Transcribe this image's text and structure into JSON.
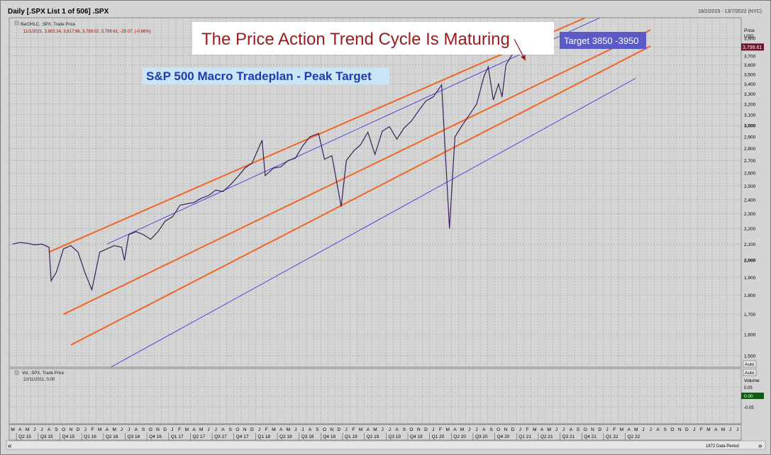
{
  "window": {
    "title": "Daily [.SPX List 1 of 506] .SPX",
    "date_range": "18/2/2015 - 13/7/2022 (NYC)"
  },
  "price_panel": {
    "legend_line1": "BarOHLC, .SPX, Trade Price",
    "legend_line2": "11/1/2021, 3,803.14, 3,817.86, 3,789.02, 3,799.61, -25.07, (-0.66%)",
    "axis_title_1": "Price",
    "axis_title_2": "USD",
    "last_price_label": "3,799.61",
    "auto_button": "Auto"
  },
  "volume_panel": {
    "legend_line1": "Vol, .SPX, Trade Price",
    "legend_line2": "22/11/2011, 0.00",
    "axis_title": "Volume",
    "ticks": [
      "0.05",
      "0.00",
      "-0.05"
    ],
    "value_label": "0.00",
    "auto_button": "Auto"
  },
  "bottom_bar": {
    "data_period": "1872 Data Period",
    "scroll_left": "«",
    "scroll_right": "»"
  },
  "annotations": {
    "headline": "The Price Action Trend Cycle Is Maturing",
    "subtitle": "S&P 500 Macro Tradeplan - Peak Target",
    "target_box": "Target 3850 -3950"
  },
  "colors": {
    "channel_orange": "#f26522",
    "channel_blue": "#3a3ae0",
    "price_series": "#3a1f5c",
    "subtitle_text": "#1f3bb3",
    "subtitle_bg": "#c8e6f5",
    "headline_text": "#9b1b1b",
    "target_bg": "#5b5bc8",
    "arrow": "#9b1b1b",
    "last_price_bg": "#6e1428",
    "volume_label_bg": "#0e5a0e"
  },
  "chart_data": {
    "type": "line",
    "title": "",
    "xlabel": "",
    "ylabel": "Price USD",
    "y_scale": "log",
    "ylim": [
      1450,
      4150
    ],
    "y_ticks": [
      1500,
      1600,
      1700,
      1800,
      1900,
      2000,
      2100,
      2200,
      2300,
      2400,
      2500,
      2600,
      2700,
      2800,
      2900,
      3000,
      3100,
      3200,
      3300,
      3400,
      3500,
      3600,
      3700,
      3800,
      3900
    ],
    "y_tick_labels": [
      "1,500",
      "1,600",
      "1,700",
      "1,800",
      "1,900",
      "2,000",
      "2,100",
      "2,200",
      "2,300",
      "2,400",
      "2,500",
      "2,600",
      "2,700",
      "2,800",
      "2,900",
      "3,000",
      "3,100",
      "3,200",
      "3,300",
      "3,400",
      "3,500",
      "3,600",
      "3,700",
      "3,800",
      "3,900"
    ],
    "x_month_letters": [
      "M",
      "A",
      "M",
      "J",
      "J",
      "A",
      "S",
      "O",
      "N",
      "D",
      "J",
      "F",
      "M",
      "A",
      "M",
      "J",
      "J",
      "A",
      "S",
      "O",
      "N",
      "D",
      "J",
      "F",
      "M",
      "A",
      "M",
      "J",
      "J",
      "A",
      "S",
      "O",
      "N",
      "D",
      "J",
      "F",
      "M",
      "A",
      "M",
      "J",
      "J",
      "A",
      "S",
      "O",
      "N",
      "D",
      "J",
      "F",
      "M",
      "A",
      "M",
      "J",
      "J",
      "A",
      "S",
      "O",
      "N",
      "D",
      "J",
      "F",
      "M",
      "A",
      "M",
      "J",
      "J",
      "A",
      "S",
      "O",
      "N",
      "D",
      "J",
      "F",
      "M",
      "A",
      "M",
      "J",
      "J",
      "A",
      "S",
      "O",
      "N",
      "D",
      "J",
      "F",
      "M",
      "A",
      "M",
      "J",
      "J",
      "A",
      "S",
      "O",
      "N",
      "D",
      "J",
      "F",
      "M",
      "A",
      "M",
      "J",
      "J"
    ],
    "x_quarter_labels": [
      "Q2 15",
      "Q3 15",
      "Q4 15",
      "Q1 16",
      "Q2 16",
      "Q3 16",
      "Q4 16",
      "Q1 17",
      "Q2 17",
      "Q3 17",
      "Q4 17",
      "Q1 18",
      "Q2 18",
      "Q3 18",
      "Q4 18",
      "Q1 19",
      "Q2 19",
      "Q3 19",
      "Q4 19",
      "Q1 20",
      "Q2 20",
      "Q3 20",
      "Q4 20",
      "Q1 21",
      "Q2 21",
      "Q3 21",
      "Q4 21",
      "Q1 22",
      "Q2 22"
    ],
    "x_start": "2015-03",
    "series": [
      {
        "x": [
          "2015-03",
          "2015-04",
          "2015-05",
          "2015-06",
          "2015-07",
          "2015-08",
          "2015-08-24",
          "2015-09",
          "2015-10",
          "2015-11",
          "2015-12",
          "2016-01",
          "2016-02-11",
          "2016-03",
          "2016-04",
          "2016-05",
          "2016-06",
          "2016-06-27",
          "2016-07",
          "2016-08",
          "2016-09",
          "2016-10",
          "2016-11",
          "2016-12",
          "2017-01",
          "2017-02",
          "2017-03",
          "2017-04",
          "2017-05",
          "2017-06",
          "2017-07",
          "2017-08",
          "2017-09",
          "2017-10",
          "2017-11",
          "2017-12",
          "2018-01-26",
          "2018-02-08",
          "2018-03",
          "2018-04",
          "2018-05",
          "2018-06",
          "2018-07",
          "2018-08",
          "2018-09-20",
          "2018-10",
          "2018-11",
          "2018-12-24",
          "2019-01",
          "2019-02",
          "2019-03",
          "2019-04",
          "2019-05",
          "2019-06",
          "2019-07",
          "2019-08",
          "2019-09",
          "2019-10",
          "2019-11",
          "2019-12",
          "2020-01",
          "2020-02-19",
          "2020-03-23",
          "2020-04",
          "2020-05",
          "2020-06",
          "2020-07",
          "2020-08",
          "2020-09-02",
          "2020-09-23",
          "2020-10",
          "2020-10-30",
          "2020-11",
          "2020-12",
          "2021-01-08",
          "2021-01-11"
        ],
        "values": [
          2100,
          2110,
          2105,
          2095,
          2100,
          2080,
          1880,
          1930,
          2070,
          2090,
          2050,
          1920,
          1830,
          2050,
          2070,
          2090,
          2080,
          2000,
          2160,
          2180,
          2160,
          2130,
          2180,
          2250,
          2280,
          2360,
          2370,
          2380,
          2410,
          2430,
          2470,
          2460,
          2510,
          2570,
          2640,
          2680,
          2870,
          2580,
          2640,
          2650,
          2700,
          2720,
          2820,
          2900,
          2930,
          2710,
          2740,
          2350,
          2700,
          2780,
          2830,
          2940,
          2750,
          2950,
          2990,
          2880,
          2980,
          3040,
          3140,
          3230,
          3270,
          3390,
          2200,
          2900,
          3000,
          3100,
          3200,
          3480,
          3580,
          3240,
          3400,
          3270,
          3600,
          3730,
          3820,
          3799.61
        ]
      }
    ],
    "channel_lines": [
      {
        "color": "orange",
        "x": [
          "2015-08",
          "2021-10"
        ],
        "values": [
          2050,
          4150
        ]
      },
      {
        "color": "orange",
        "x": [
          "2015-10",
          "2022-07"
        ],
        "values": [
          1700,
          4000
        ]
      },
      {
        "color": "orange",
        "x": [
          "2015-11",
          "2022-07"
        ],
        "values": [
          1550,
          3810
        ]
      },
      {
        "color": "blue",
        "x": [
          "2016-04",
          "2021-12"
        ],
        "values": [
          2100,
          4150
        ]
      },
      {
        "color": "blue",
        "x": [
          "2016-01",
          "2022-05"
        ],
        "values": [
          1390,
          3460
        ]
      }
    ],
    "arrows": [
      {
        "from_x": "2020-12-20",
        "from_value": 3890,
        "to_x": "2021-02-05",
        "to_value": 3650
      }
    ],
    "grid": true,
    "legend": "none"
  }
}
